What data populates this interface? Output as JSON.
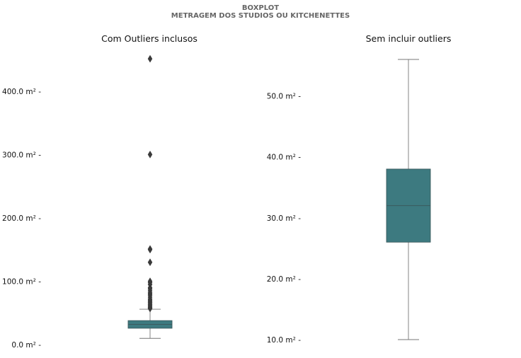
{
  "figure": {
    "suptitle_line1": "BOXPLOT",
    "suptitle_line2": "METRAGEM DOS STUDIOS OU KITCHENETTES"
  },
  "colors": {
    "box_fill": "#3d7a80",
    "box_edge": "#3b5a5e",
    "whisker": "#777777",
    "flier": "#3a3a3a"
  },
  "chart_data": [
    {
      "type": "box",
      "title": "Com Outliers inclusos",
      "xlabel": "",
      "ylabel": "",
      "ylim": [
        -2,
        450
      ],
      "yticks": [
        0,
        100,
        200,
        300,
        400
      ],
      "ytick_labels": [
        "0.0 m² -",
        "100.0 m² -",
        "200.0 m² -",
        "300.0 m² -",
        "400.0 m² -"
      ],
      "grid": false,
      "box": {
        "whislo": 10,
        "q1": 26,
        "median": 32,
        "q3": 38,
        "whishi": 56
      },
      "fliers": [
        57,
        58,
        59,
        60,
        62,
        63,
        65,
        67,
        68,
        70,
        72,
        75,
        78,
        80,
        82,
        85,
        88,
        90,
        95,
        98,
        100,
        130,
        150,
        151,
        300,
        451
      ]
    },
    {
      "type": "box",
      "title": "Sem incluir outliers",
      "xlabel": "",
      "ylabel": "",
      "ylim": [
        10,
        56
      ],
      "yticks": [
        10,
        20,
        30,
        40,
        50
      ],
      "ytick_labels": [
        "10.0 m² -",
        "20.0 m² -",
        "30.0 m² -",
        "40.0 m² -",
        "50.0 m² -"
      ],
      "grid": false,
      "box": {
        "whislo": 10,
        "q1": 26,
        "median": 32,
        "q3": 38,
        "whishi": 56
      },
      "fliers": []
    }
  ]
}
